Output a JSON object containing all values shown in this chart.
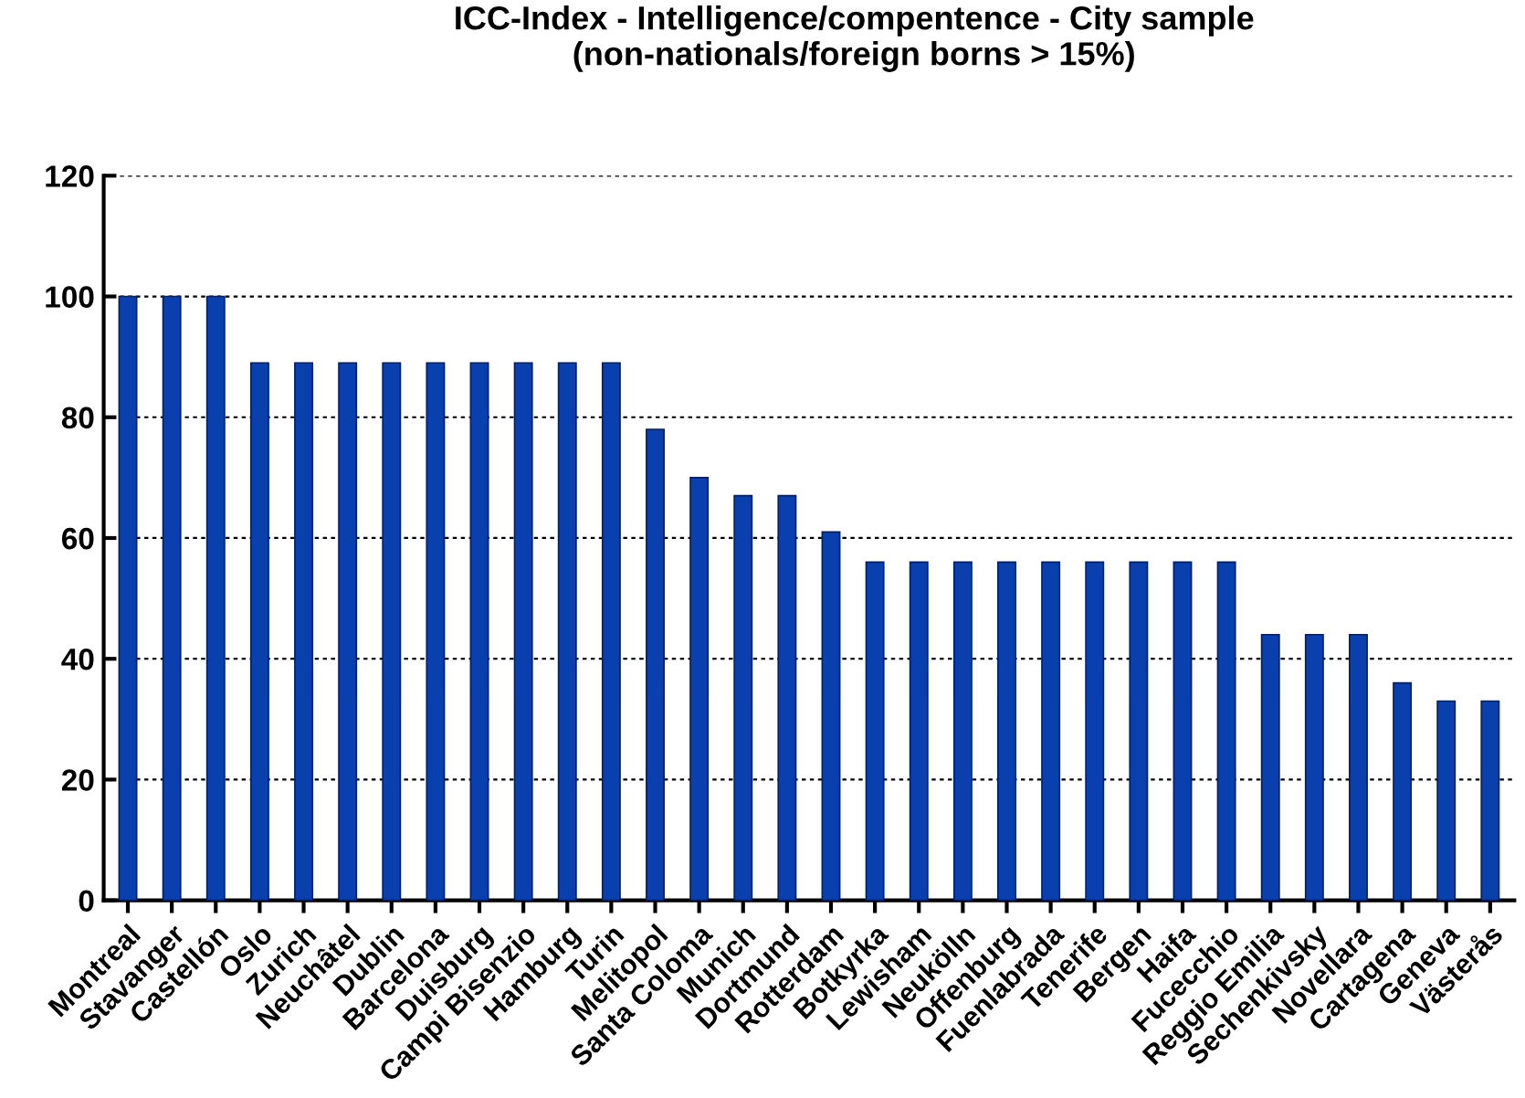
{
  "chart_data": {
    "type": "bar",
    "title": "ICC-Index - Intelligence/compentence - City sample\n(non-nationals/foreign borns > 15%)",
    "categories": [
      "Montreal",
      "Stavanger",
      "Castellón",
      "Oslo",
      "Zurich",
      "Neuchâtel",
      "Dublin",
      "Barcelona",
      "Duisburg",
      "Campi Bisenzio",
      "Hamburg",
      "Turin",
      "Melitopol",
      "Santa Coloma",
      "Munich",
      "Dortmund",
      "Rotterdam",
      "Botkyrka",
      "Lewisham",
      "Neukölln",
      "Offenburg",
      "Fuenlabrada",
      "Tenerife",
      "Bergen",
      "Haifa",
      "Fucecchio",
      "Reggio Emilia",
      "Sechenkivsky",
      "Novellara",
      "Cartagena",
      "Geneva",
      "Västerås"
    ],
    "values": [
      100,
      100,
      100,
      89,
      89,
      89,
      89,
      89,
      89,
      89,
      89,
      89,
      78,
      70,
      67,
      67,
      61,
      56,
      56,
      56,
      56,
      56,
      56,
      56,
      56,
      56,
      44,
      44,
      44,
      36,
      33,
      33
    ],
    "color": "#0a3fae",
    "ylim": [
      0,
      120
    ],
    "yticks": [
      0,
      20,
      40,
      60,
      80,
      100,
      120
    ],
    "grid": "y"
  }
}
